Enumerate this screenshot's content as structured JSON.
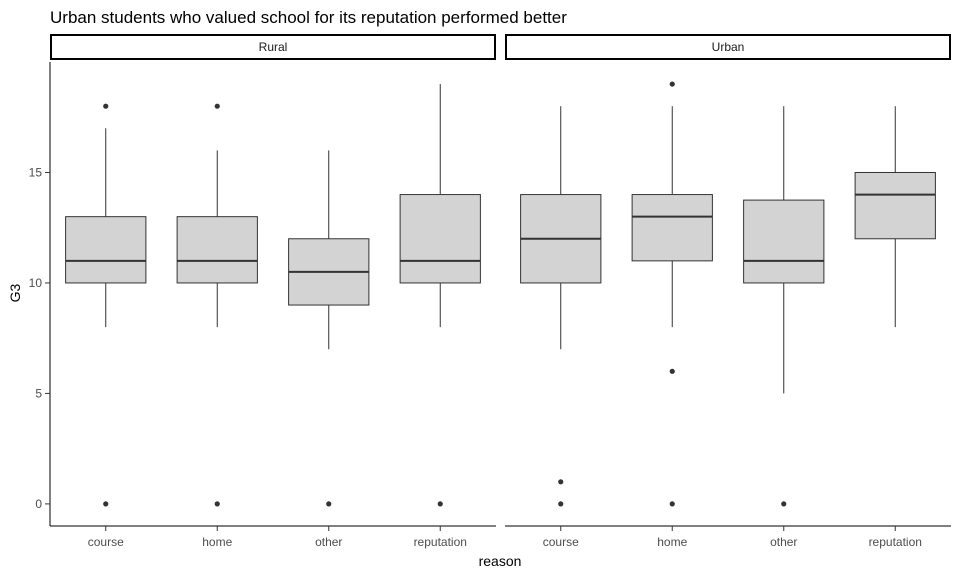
{
  "chart_data": {
    "type": "boxplot",
    "title": "Urban students who valued school for its reputation performed better",
    "xlabel": "reason",
    "ylabel": "G3",
    "ylim": [
      -1,
      20
    ],
    "yticks": [
      0,
      5,
      10,
      15
    ],
    "categories": [
      "course",
      "home",
      "other",
      "reputation"
    ],
    "grid": false,
    "colors": {
      "box_fill": "#d3d3d3",
      "box_stroke": "#333333",
      "median": "#333333",
      "outlier": "#333333",
      "strip_border": "#000000"
    },
    "panels": [
      {
        "name": "Rural",
        "boxes": [
          {
            "category": "course",
            "lower_whisker": 8,
            "q1": 10,
            "median": 11,
            "q3": 13,
            "upper_whisker": 17,
            "outliers": [
              18,
              0
            ]
          },
          {
            "category": "home",
            "lower_whisker": 8,
            "q1": 10,
            "median": 11,
            "q3": 13,
            "upper_whisker": 16,
            "outliers": [
              18,
              0
            ]
          },
          {
            "category": "other",
            "lower_whisker": 7,
            "q1": 9,
            "median": 10.5,
            "q3": 12,
            "upper_whisker": 16,
            "outliers": [
              0
            ]
          },
          {
            "category": "reputation",
            "lower_whisker": 8,
            "q1": 10,
            "median": 11,
            "q3": 14,
            "upper_whisker": 19,
            "outliers": [
              0
            ]
          }
        ]
      },
      {
        "name": "Urban",
        "boxes": [
          {
            "category": "course",
            "lower_whisker": 7,
            "q1": 10,
            "median": 12,
            "q3": 14,
            "upper_whisker": 18,
            "outliers": [
              1,
              0
            ]
          },
          {
            "category": "home",
            "lower_whisker": 8,
            "q1": 11,
            "median": 13,
            "q3": 14,
            "upper_whisker": 18,
            "outliers": [
              19,
              6,
              0
            ]
          },
          {
            "category": "other",
            "lower_whisker": 5,
            "q1": 10,
            "median": 11,
            "q3": 13.75,
            "upper_whisker": 18,
            "outliers": [
              0
            ]
          },
          {
            "category": "reputation",
            "lower_whisker": 8,
            "q1": 12,
            "median": 14,
            "q3": 15,
            "upper_whisker": 18,
            "outliers": []
          }
        ]
      }
    ]
  }
}
